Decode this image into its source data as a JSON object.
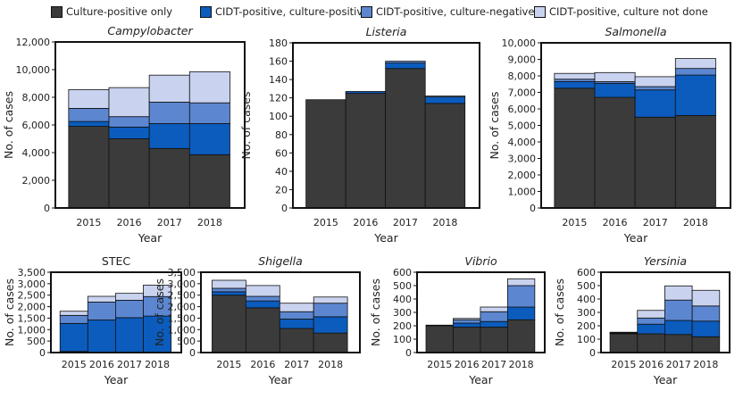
{
  "legend": [
    {
      "label": "Culture-positive only",
      "color": "#3b3b3b"
    },
    {
      "label": "CIDT-positive, culture-positive",
      "color": "#0b5cbd"
    },
    {
      "label": "CIDT-positive, culture-negative",
      "color": "#5c87d0"
    },
    {
      "label": "CIDT-positive, culture not done",
      "color": "#c9d3ef"
    }
  ],
  "chart_data": [
    {
      "type": "bar",
      "stacked": true,
      "title": "Campylobacter",
      "title_italic": true,
      "xlabel": "Year",
      "ylabel": "No. of cases",
      "ylim": [
        0,
        12000
      ],
      "yticks": [
        0,
        2000,
        4000,
        6000,
        8000,
        10000,
        12000
      ],
      "categories": [
        "2015",
        "2016",
        "2017",
        "2018"
      ],
      "series": [
        {
          "name": "Culture-positive only",
          "values": [
            5900,
            5000,
            4300,
            3850
          ]
        },
        {
          "name": "CIDT-positive, culture-positive",
          "values": [
            350,
            850,
            1800,
            2250
          ]
        },
        {
          "name": "CIDT-positive, culture-negative",
          "values": [
            950,
            750,
            1550,
            1500
          ]
        },
        {
          "name": "CIDT-positive, culture not done",
          "values": [
            1350,
            2100,
            1950,
            2250
          ]
        }
      ]
    },
    {
      "type": "bar",
      "stacked": true,
      "title": "Listeria",
      "title_italic": true,
      "xlabel": "Year",
      "ylabel": "No. of cases",
      "ylim": [
        0,
        180
      ],
      "yticks": [
        0,
        20,
        40,
        60,
        80,
        100,
        120,
        140,
        160,
        180
      ],
      "categories": [
        "2015",
        "2016",
        "2017",
        "2018"
      ],
      "series": [
        {
          "name": "Culture-positive only",
          "values": [
            118,
            125,
            152,
            114
          ]
        },
        {
          "name": "CIDT-positive, culture-positive",
          "values": [
            0,
            2,
            6,
            7
          ]
        },
        {
          "name": "CIDT-positive, culture-negative",
          "values": [
            0,
            0,
            2,
            1
          ]
        },
        {
          "name": "CIDT-positive, culture not done",
          "values": [
            0,
            0,
            0,
            0
          ]
        }
      ]
    },
    {
      "type": "bar",
      "stacked": true,
      "title": "Salmonella",
      "title_italic": true,
      "xlabel": "Year",
      "ylabel": "No. of cases",
      "ylim": [
        0,
        10000
      ],
      "yticks": [
        0,
        1000,
        2000,
        3000,
        4000,
        5000,
        6000,
        7000,
        8000,
        9000,
        10000
      ],
      "categories": [
        "2015",
        "2016",
        "2017",
        "2018"
      ],
      "series": [
        {
          "name": "Culture-positive only",
          "values": [
            7250,
            6700,
            5500,
            5600
          ]
        },
        {
          "name": "CIDT-positive, culture-positive",
          "values": [
            400,
            850,
            1650,
            2450
          ]
        },
        {
          "name": "CIDT-positive, culture-negative",
          "values": [
            150,
            100,
            200,
            400
          ]
        },
        {
          "name": "CIDT-positive, culture not done",
          "values": [
            350,
            550,
            600,
            600
          ]
        }
      ]
    },
    {
      "type": "bar",
      "stacked": true,
      "title": "STEC",
      "title_italic": false,
      "xlabel": "Year",
      "ylabel": "No. of cases",
      "ylim": [
        0,
        3500
      ],
      "yticks": [
        0,
        500,
        1000,
        1500,
        2000,
        2500,
        3000,
        3500
      ],
      "categories": [
        "2015",
        "2016",
        "2017",
        "2018"
      ],
      "series": [
        {
          "name": "Culture-positive only",
          "values": [
            50,
            10,
            10,
            10
          ]
        },
        {
          "name": "CIDT-positive, culture-positive",
          "values": [
            1220,
            1410,
            1510,
            1580
          ]
        },
        {
          "name": "CIDT-positive, culture-negative",
          "values": [
            350,
            780,
            760,
            850
          ]
        },
        {
          "name": "CIDT-positive, culture not done",
          "values": [
            180,
            250,
            300,
            500
          ]
        }
      ]
    },
    {
      "type": "bar",
      "stacked": true,
      "title": "Shigella",
      "title_italic": true,
      "xlabel": "Year",
      "ylabel": "No. of cases",
      "ylim": [
        0,
        3500
      ],
      "yticks": [
        0,
        500,
        1000,
        1500,
        2000,
        2500,
        3000,
        3500
      ],
      "categories": [
        "2015",
        "2016",
        "2017",
        "2018"
      ],
      "series": [
        {
          "name": "Culture-positive only",
          "values": [
            2500,
            1950,
            1050,
            850
          ]
        },
        {
          "name": "CIDT-positive, culture-positive",
          "values": [
            150,
            300,
            410,
            710
          ]
        },
        {
          "name": "CIDT-positive, culture-negative",
          "values": [
            150,
            200,
            320,
            590
          ]
        },
        {
          "name": "CIDT-positive, culture not done",
          "values": [
            350,
            470,
            370,
            270
          ]
        }
      ]
    },
    {
      "type": "bar",
      "stacked": true,
      "title": "Vibrio",
      "title_italic": true,
      "xlabel": "Year",
      "ylabel": "No. of cases",
      "ylim": [
        0,
        600
      ],
      "yticks": [
        0,
        100,
        200,
        300,
        400,
        500,
        600
      ],
      "categories": [
        "2015",
        "2016",
        "2017",
        "2018"
      ],
      "series": [
        {
          "name": "Culture-positive only",
          "values": [
            200,
            190,
            190,
            245
          ]
        },
        {
          "name": "CIDT-positive, culture-positive",
          "values": [
            3,
            30,
            42,
            95
          ]
        },
        {
          "name": "CIDT-positive, culture-negative",
          "values": [
            2,
            25,
            73,
            160
          ]
        },
        {
          "name": "CIDT-positive, culture not done",
          "values": [
            0,
            10,
            35,
            50
          ]
        }
      ]
    },
    {
      "type": "bar",
      "stacked": true,
      "title": "Yersinia",
      "title_italic": true,
      "xlabel": "Year",
      "ylabel": "No. of cases",
      "ylim": [
        0,
        600
      ],
      "yticks": [
        0,
        100,
        200,
        300,
        400,
        500,
        600
      ],
      "categories": [
        "2015",
        "2016",
        "2017",
        "2018"
      ],
      "series": [
        {
          "name": "Culture-positive only",
          "values": [
            140,
            140,
            135,
            118
          ]
        },
        {
          "name": "CIDT-positive, culture-positive",
          "values": [
            5,
            72,
            105,
            117
          ]
        },
        {
          "name": "CIDT-positive, culture-negative",
          "values": [
            3,
            46,
            152,
            113
          ]
        },
        {
          "name": "CIDT-positive, culture not done",
          "values": [
            4,
            57,
            106,
            117
          ]
        }
      ]
    }
  ]
}
